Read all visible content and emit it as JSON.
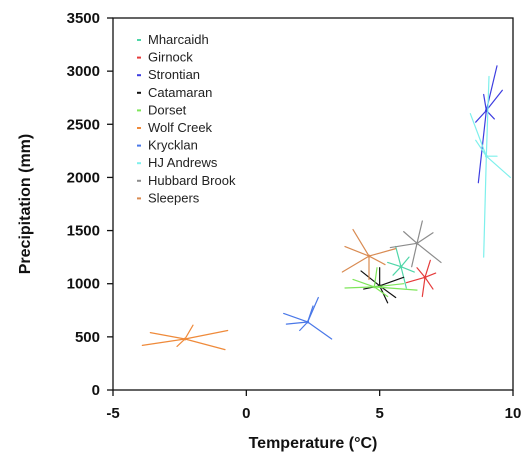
{
  "chart_data": {
    "type": "scatter",
    "xlabel": "Temperature (°C)",
    "ylabel": "Precipitation (mm)",
    "xlim": [
      -5,
      10
    ],
    "ylim": [
      0,
      3500
    ],
    "xticks": [
      "-5",
      "0",
      "5",
      "10"
    ],
    "yticks": [
      "0",
      "500",
      "1000",
      "1500",
      "2000",
      "2500",
      "3000",
      "3500"
    ],
    "grid": false,
    "legend": "top-left",
    "series": [
      {
        "name": "Mharcaidh",
        "color": "#4fd6a8",
        "center": [
          5.8,
          1160
        ],
        "rays": [
          [
            5.6,
            1350
          ],
          [
            6.0,
            960
          ],
          [
            5.5,
            1080
          ],
          [
            6.1,
            1250
          ],
          [
            5.3,
            1200
          ],
          [
            6.3,
            1110
          ]
        ]
      },
      {
        "name": "Girnock",
        "color": "#e53b3b",
        "center": [
          6.7,
          1060
        ],
        "rays": [
          [
            6.9,
            1220
          ],
          [
            6.6,
            880
          ],
          [
            6.0,
            1010
          ],
          [
            7.1,
            1100
          ],
          [
            6.4,
            1150
          ],
          [
            7.0,
            950
          ]
        ]
      },
      {
        "name": "Strontian",
        "color": "#3d3de0",
        "center": [
          9.0,
          2630
        ],
        "rays": [
          [
            9.4,
            3050
          ],
          [
            8.7,
            1950
          ],
          [
            8.6,
            2520
          ],
          [
            9.6,
            2820
          ],
          [
            9.3,
            2550
          ],
          [
            8.9,
            2780
          ]
        ]
      },
      {
        "name": "Catamaran",
        "color": "#111111",
        "center": [
          5.0,
          980
        ],
        "rays": [
          [
            4.3,
            1120
          ],
          [
            5.6,
            870
          ],
          [
            5.0,
            1150
          ],
          [
            5.3,
            820
          ],
          [
            4.4,
            950
          ],
          [
            5.9,
            1060
          ]
        ]
      },
      {
        "name": "Dorset",
        "color": "#7ee65a",
        "center": [
          4.8,
          970
        ],
        "rays": [
          [
            3.7,
            960
          ],
          [
            5.9,
            1000
          ],
          [
            4.9,
            1150
          ],
          [
            5.3,
            880
          ],
          [
            6.4,
            940
          ],
          [
            4.0,
            1040
          ]
        ]
      },
      {
        "name": "Wolf Creek",
        "color": "#ef8a3a",
        "center": [
          -2.3,
          480
        ],
        "rays": [
          [
            -3.6,
            540
          ],
          [
            -0.7,
            560
          ],
          [
            -3.9,
            420
          ],
          [
            -2.0,
            610
          ],
          [
            -0.8,
            380
          ],
          [
            -2.6,
            410
          ]
        ]
      },
      {
        "name": "Krycklan",
        "color": "#4a78e8",
        "center": [
          2.3,
          640
        ],
        "rays": [
          [
            2.7,
            870
          ],
          [
            1.4,
            720
          ],
          [
            3.2,
            480
          ],
          [
            2.0,
            560
          ],
          [
            1.5,
            620
          ],
          [
            2.5,
            790
          ]
        ]
      },
      {
        "name": "HJ Andrews",
        "color": "#7ef0ec",
        "center": [
          9.0,
          2200
        ],
        "rays": [
          [
            9.1,
            2950
          ],
          [
            8.9,
            1250
          ],
          [
            8.4,
            2600
          ],
          [
            9.9,
            2000
          ],
          [
            9.4,
            2200
          ],
          [
            8.6,
            2350
          ]
        ]
      },
      {
        "name": "Hubbard Brook",
        "color": "#8c8c8c",
        "center": [
          6.4,
          1380
        ],
        "rays": [
          [
            6.6,
            1590
          ],
          [
            5.4,
            1340
          ],
          [
            7.3,
            1200
          ],
          [
            6.2,
            1160
          ],
          [
            5.9,
            1490
          ],
          [
            7.0,
            1480
          ]
        ]
      },
      {
        "name": "Sleepers",
        "color": "#d98b52",
        "center": [
          4.6,
          1260
        ],
        "rays": [
          [
            4.0,
            1510
          ],
          [
            3.6,
            1110
          ],
          [
            5.6,
            1330
          ],
          [
            4.6,
            1040
          ],
          [
            5.2,
            1180
          ],
          [
            3.7,
            1350
          ]
        ]
      }
    ]
  }
}
